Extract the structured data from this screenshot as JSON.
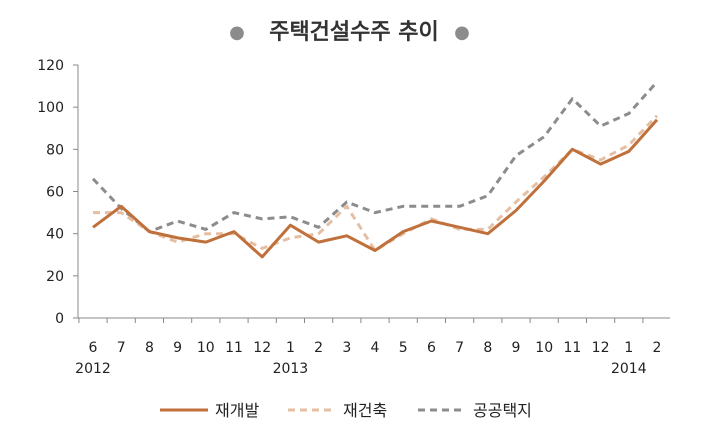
{
  "chart_data": {
    "type": "line",
    "title": "주택건설수주 추이",
    "title_bullet": "●",
    "categories": [
      "6",
      "7",
      "8",
      "9",
      "10",
      "11",
      "12",
      "1",
      "2",
      "3",
      "4",
      "5",
      "6",
      "7",
      "8",
      "9",
      "10",
      "11",
      "12",
      "1",
      "2"
    ],
    "year_labels": [
      {
        "label": "2012",
        "index": 0
      },
      {
        "label": "2013",
        "index": 7
      },
      {
        "label": "2014",
        "index": 19
      }
    ],
    "ylim": [
      0,
      120
    ],
    "yticks": [
      0,
      20,
      40,
      60,
      80,
      100,
      120
    ],
    "xlabel": "",
    "ylabel": "",
    "grid": false,
    "legend_position": "bottom",
    "series": [
      {
        "name": "재개발",
        "color": "#C0703B",
        "dash": "solid",
        "values": [
          43,
          53,
          41,
          38,
          36,
          41,
          29,
          44,
          36,
          39,
          32,
          41,
          46,
          43,
          40,
          51,
          65,
          80,
          73,
          79,
          94
        ]
      },
      {
        "name": "재건축",
        "color": "#E5BFA3",
        "dash": "dashed",
        "values": [
          50,
          50,
          41,
          36,
          40,
          40,
          33,
          38,
          40,
          53,
          32,
          40,
          47,
          42,
          42,
          55,
          67,
          80,
          75,
          82,
          96
        ]
      },
      {
        "name": "공공택지",
        "color": "#8C8C8C",
        "dash": "dashed",
        "values": [
          66,
          52,
          41,
          46,
          42,
          50,
          47,
          48,
          43,
          55,
          50,
          53,
          53,
          53,
          58,
          77,
          86,
          104,
          91,
          97,
          112
        ]
      }
    ]
  }
}
